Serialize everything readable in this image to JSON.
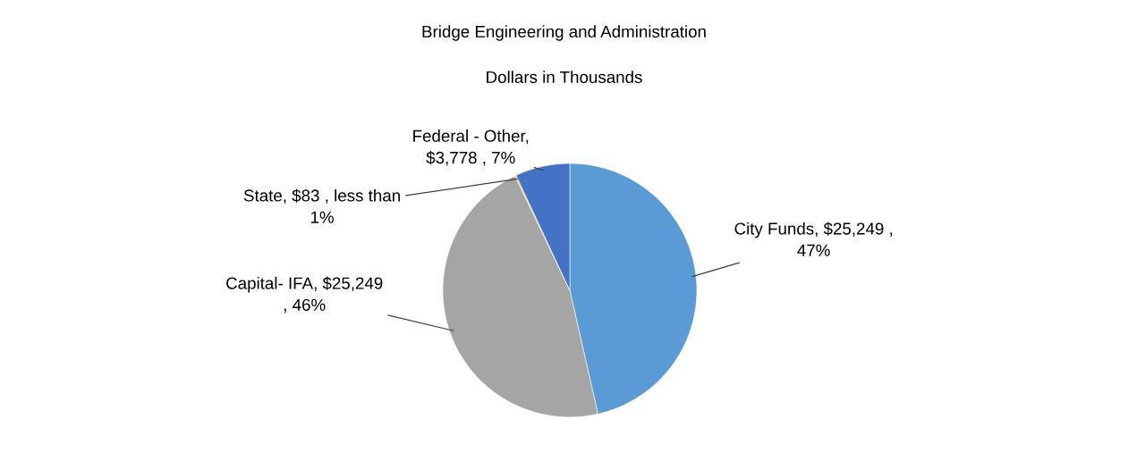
{
  "chart_data": {
    "type": "pie",
    "title": "Bridge Engineering and Administration",
    "subtitle": "Dollars in Thousands",
    "categories": [
      "City Funds",
      "Capital- IFA",
      "State",
      "Federal - Other"
    ],
    "values": [
      25249,
      25249,
      83,
      3778
    ],
    "colors": [
      "#5b9bd5",
      "#a5a5a5",
      "#ffc000",
      "#4472c4"
    ],
    "value_labels": [
      ", $25,249 ,\n47%",
      ", $25,249\n, 46%",
      ", $83 , less than\n1%",
      ",\n$3,778 , 7%"
    ],
    "legend": false
  }
}
